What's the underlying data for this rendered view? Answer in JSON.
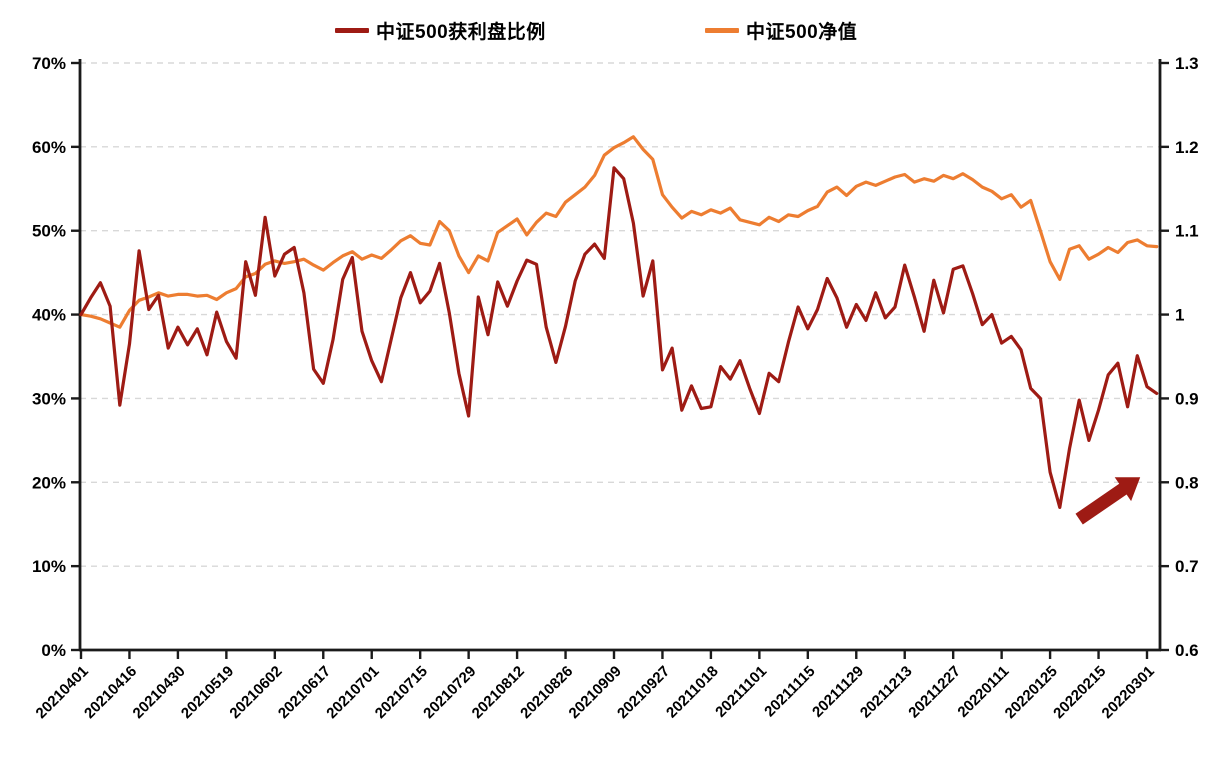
{
  "page": {
    "background": "#FFFFFF"
  },
  "legend": {
    "items": [
      {
        "label": "中证500获利盘比例",
        "color": "#9E1B14"
      },
      {
        "label": "中证500净值",
        "color": "#ED7D31"
      }
    ]
  },
  "chart_data": {
    "type": "line",
    "title": "",
    "grid": "horizontal-dashed",
    "grid_color": "#D8D8D8",
    "axis_color": "#1A1A1A",
    "legend_position": "top-center",
    "x_tick_labels": [
      "20210401",
      "20210416",
      "20210430",
      "20210519",
      "20210602",
      "20210617",
      "20210701",
      "20210715",
      "20210729",
      "20210812",
      "20210826",
      "20210909",
      "20210927",
      "20211018",
      "20211101",
      "20211115",
      "20211129",
      "20211213",
      "20211227",
      "20220111",
      "20220125",
      "20220215",
      "20220301"
    ],
    "points_per_tick": 5,
    "left_axis": {
      "min": 0,
      "max": 70,
      "step": 10,
      "format": "percent",
      "labels": [
        "0%",
        "10%",
        "20%",
        "30%",
        "40%",
        "50%",
        "60%",
        "70%"
      ]
    },
    "right_axis": {
      "min": 0.6,
      "max": 1.3,
      "step": 0.1,
      "labels": [
        "0.6",
        "0.7",
        "0.8",
        "0.9",
        "1",
        "1.1",
        "1.2",
        "1.3"
      ]
    },
    "series": [
      {
        "name": "中证500获利盘比例",
        "axis": "left",
        "color": "#9E1B14",
        "unit": "%",
        "values": [
          40.0,
          42.0,
          43.8,
          41.0,
          29.2,
          36.5,
          47.6,
          40.6,
          42.3,
          36.0,
          38.5,
          36.4,
          38.3,
          35.2,
          40.3,
          36.8,
          34.8,
          46.3,
          42.3,
          51.6,
          44.6,
          47.2,
          48.0,
          42.6,
          33.5,
          31.8,
          37.0,
          44.2,
          46.8,
          38.0,
          34.5,
          32.0,
          37.0,
          42.0,
          45.0,
          41.4,
          42.8,
          46.1,
          40.2,
          33.0,
          27.9,
          42.1,
          37.6,
          43.9,
          41.0,
          44.0,
          46.5,
          46.0,
          38.5,
          34.3,
          38.6,
          44.0,
          47.2,
          48.4,
          46.7,
          57.5,
          56.2,
          50.9,
          42.2,
          46.4,
          33.4,
          36.0,
          28.6,
          31.5,
          28.8,
          29.0,
          33.8,
          32.3,
          34.5,
          31.2,
          28.2,
          33.0,
          32.0,
          36.7,
          40.9,
          38.3,
          40.6,
          44.3,
          42.0,
          38.5,
          41.2,
          39.3,
          42.6,
          39.6,
          40.9,
          45.9,
          42.1,
          38.0,
          44.1,
          40.2,
          45.4,
          45.8,
          42.5,
          38.8,
          40.0,
          36.6,
          37.4,
          35.8,
          31.2,
          30.0,
          21.2,
          17.0,
          24.0,
          29.8,
          25.0,
          28.6,
          32.8,
          34.2,
          29.0,
          35.1,
          31.4,
          30.6
        ]
      },
      {
        "name": "中证500净值",
        "axis": "right",
        "color": "#ED7D31",
        "unit": "",
        "values": [
          1.0,
          0.998,
          0.995,
          0.99,
          0.985,
          1.005,
          1.017,
          1.021,
          1.026,
          1.022,
          1.024,
          1.024,
          1.022,
          1.023,
          1.018,
          1.026,
          1.031,
          1.045,
          1.049,
          1.06,
          1.064,
          1.061,
          1.063,
          1.066,
          1.059,
          1.053,
          1.062,
          1.07,
          1.075,
          1.066,
          1.071,
          1.067,
          1.077,
          1.088,
          1.094,
          1.085,
          1.083,
          1.111,
          1.1,
          1.07,
          1.05,
          1.07,
          1.064,
          1.098,
          1.106,
          1.114,
          1.095,
          1.11,
          1.121,
          1.117,
          1.134,
          1.143,
          1.152,
          1.166,
          1.19,
          1.199,
          1.205,
          1.212,
          1.197,
          1.185,
          1.143,
          1.128,
          1.115,
          1.123,
          1.119,
          1.125,
          1.121,
          1.127,
          1.113,
          1.11,
          1.107,
          1.116,
          1.111,
          1.119,
          1.117,
          1.124,
          1.129,
          1.146,
          1.152,
          1.142,
          1.153,
          1.158,
          1.154,
          1.159,
          1.164,
          1.167,
          1.158,
          1.162,
          1.159,
          1.166,
          1.162,
          1.168,
          1.161,
          1.152,
          1.147,
          1.138,
          1.143,
          1.128,
          1.136,
          1.1,
          1.063,
          1.042,
          1.078,
          1.082,
          1.066,
          1.072,
          1.08,
          1.074,
          1.086,
          1.089,
          1.082,
          1.081
        ]
      }
    ],
    "annotation_arrow": {
      "from_index": 103.0,
      "from_pct": 15.6,
      "to_index": 109.3,
      "to_pct": 20.6,
      "color": "#9E1B14"
    }
  }
}
